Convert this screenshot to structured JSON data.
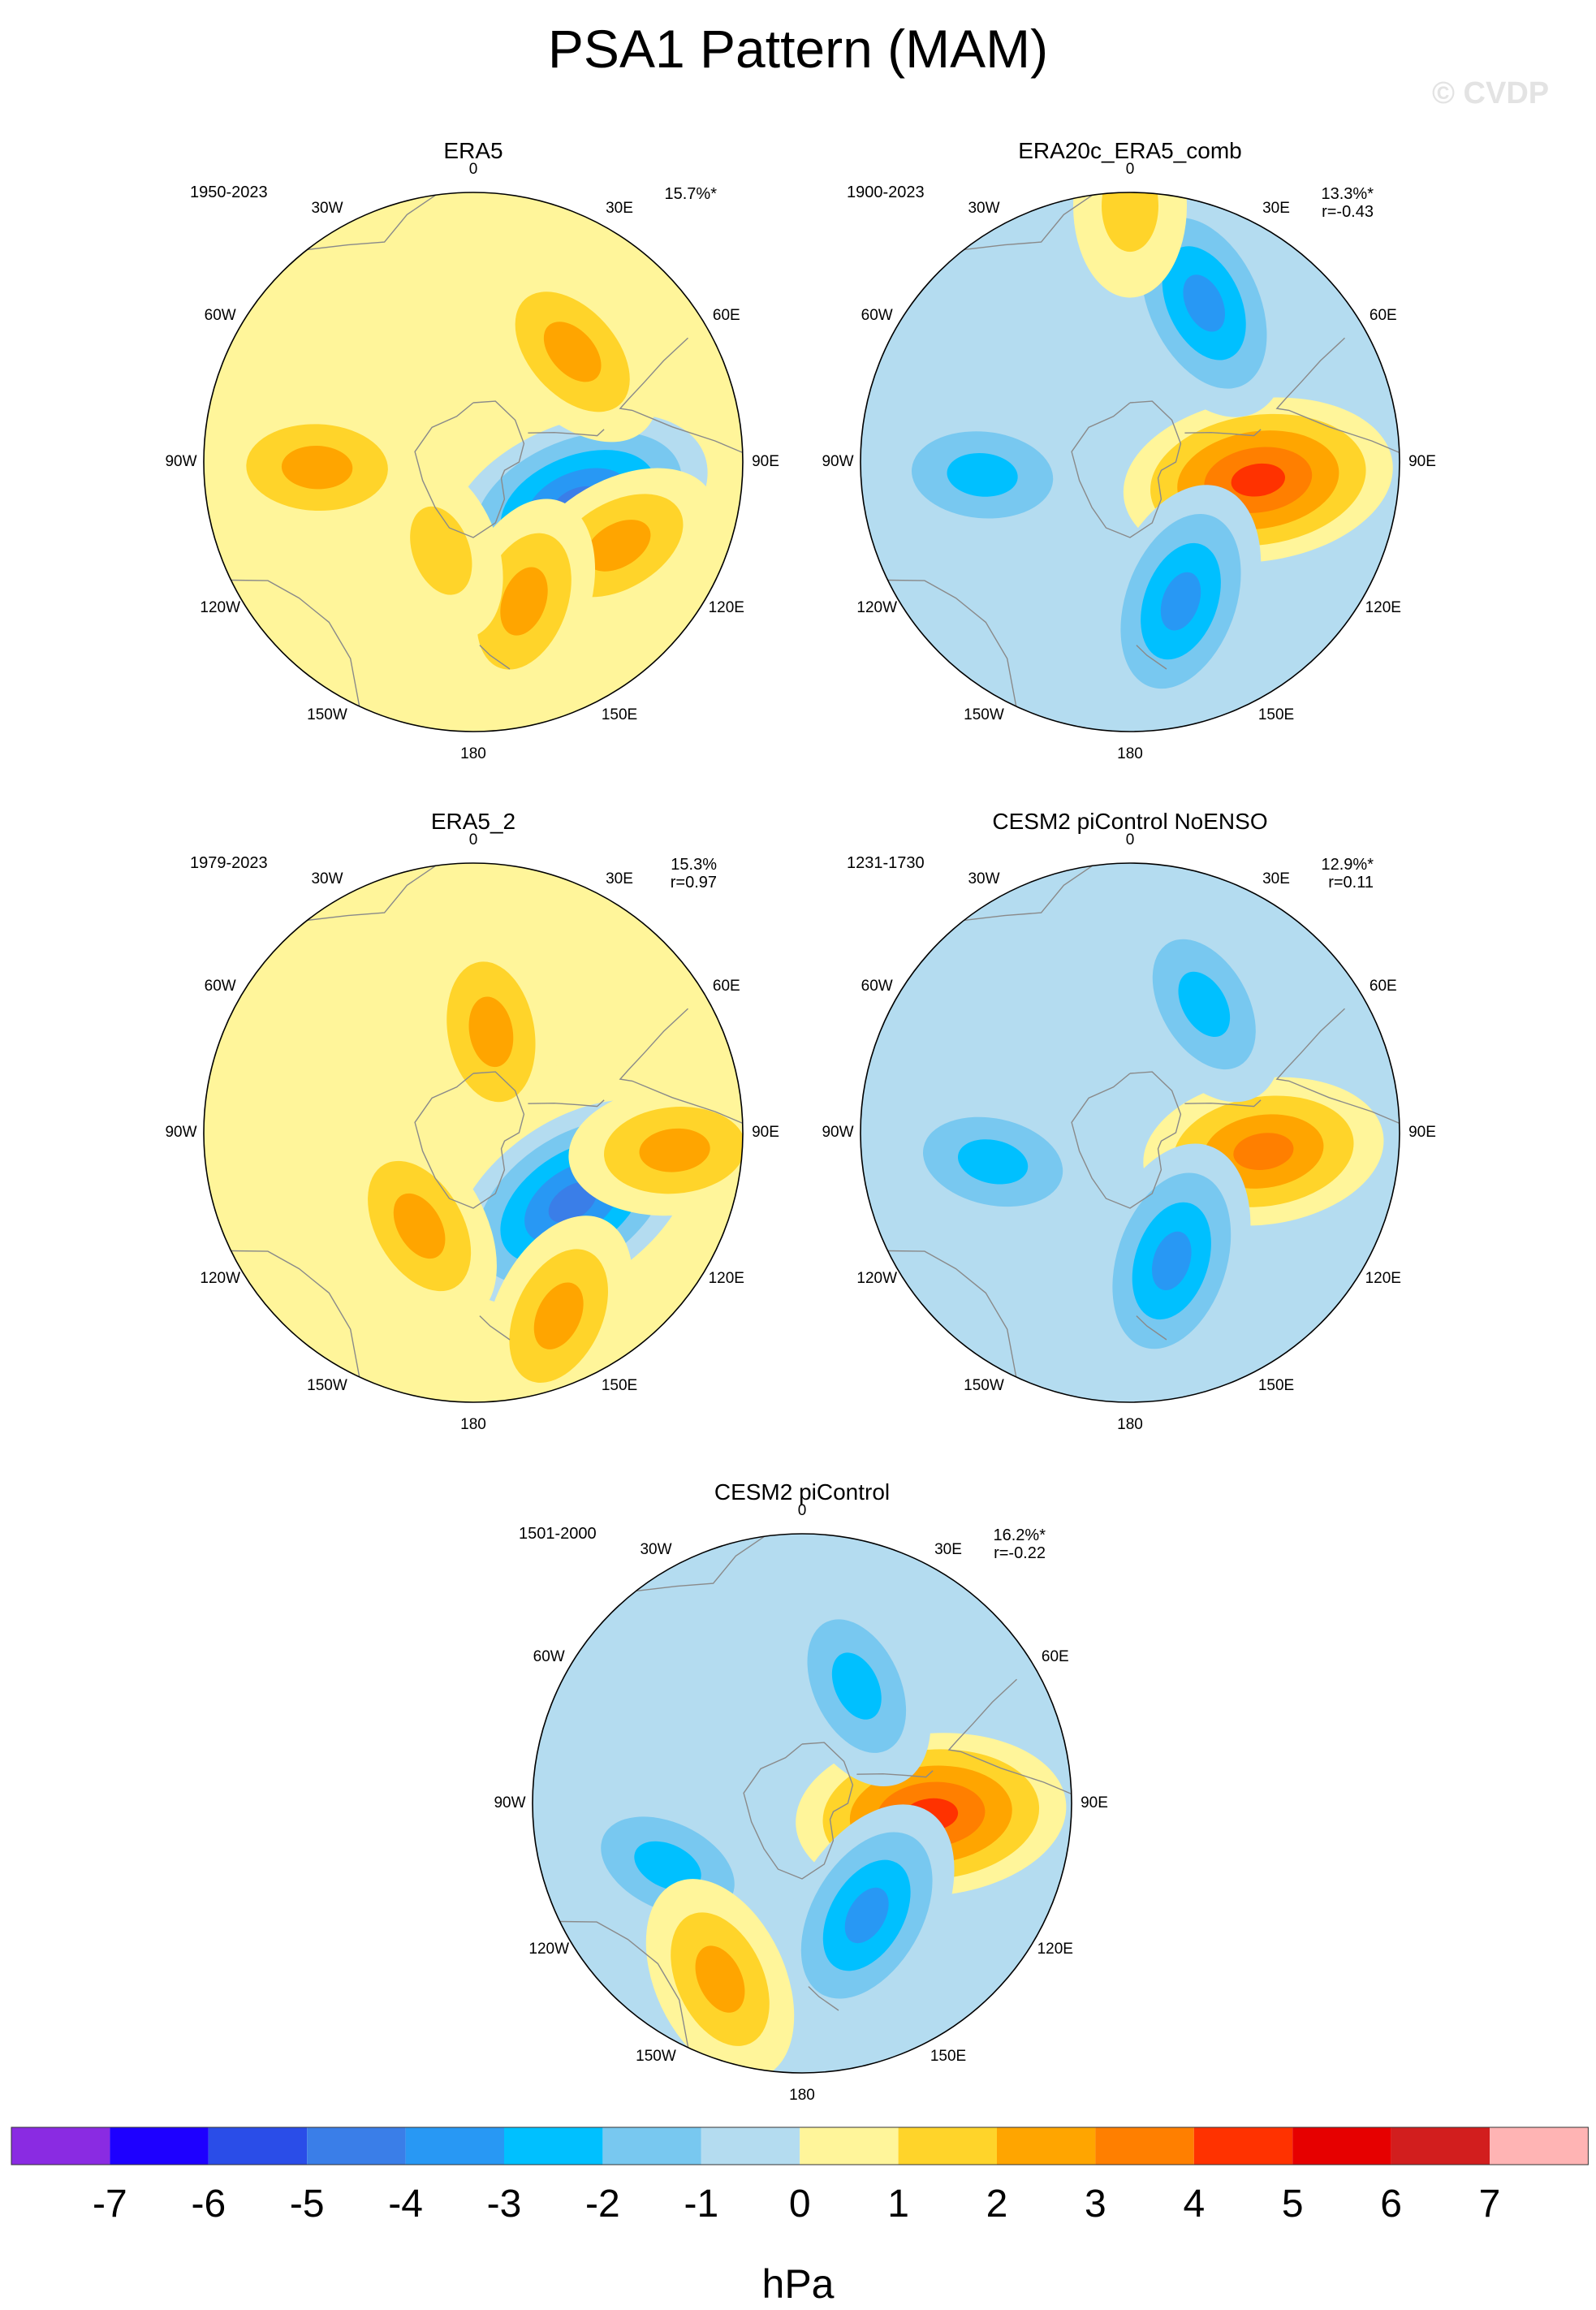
{
  "title": "PSA1 Pattern (MAM)",
  "watermark": "© CVDP",
  "chart_data": {
    "type": "heatmap",
    "projection": "south polar stereographic",
    "variable": "PSA1 sea level pressure pattern",
    "units": "hPa",
    "longitude_labels": [
      "0",
      "30E",
      "60E",
      "90E",
      "120E",
      "150E",
      "180",
      "150W",
      "120W",
      "90W",
      "60W",
      "30W"
    ],
    "panels": [
      {
        "title": "ERA5",
        "period": "1950-2023",
        "pct_variance": "15.7%*",
        "pattern_corr": "",
        "features": [
          {
            "sign": "neg",
            "peak": -4,
            "lon": 112,
            "colat": 0.42,
            "note": "main low west of Antarctic Peninsula"
          },
          {
            "sign": "pos",
            "peak": 2,
            "lon": 42,
            "colat": 0.55
          },
          {
            "sign": "pos",
            "peak": 2,
            "lon": 120,
            "colat": 0.62
          },
          {
            "sign": "pos",
            "peak": 2,
            "lon": 160,
            "colat": 0.55
          },
          {
            "sign": "pos",
            "peak": 2,
            "lon": 268,
            "colat": 0.58
          },
          {
            "sign": "pos",
            "peak": 1,
            "lon": 200,
            "colat": 0.35
          }
        ]
      },
      {
        "title": "ERA20c_ERA5_comb",
        "period": "1900-2023",
        "pct_variance": "13.3%*",
        "pattern_corr": "r=-0.43",
        "features": [
          {
            "sign": "pos",
            "peak": 4,
            "lon": 98,
            "colat": 0.48,
            "note": "high west of Antarctic Peninsula"
          },
          {
            "sign": "neg",
            "peak": -3,
            "lon": 25,
            "colat": 0.65
          },
          {
            "sign": "neg",
            "peak": -2,
            "lon": 265,
            "colat": 0.55
          },
          {
            "sign": "neg",
            "peak": -3,
            "lon": 160,
            "colat": 0.55
          },
          {
            "sign": "pos",
            "peak": 1,
            "lon": 0,
            "colat": 0.95
          }
        ]
      },
      {
        "title": "ERA5_2",
        "period": "1979-2023",
        "pct_variance": "15.3%",
        "pattern_corr": "r=0.97",
        "features": [
          {
            "sign": "neg",
            "peak": -4,
            "lon": 125,
            "colat": 0.45,
            "note": "main low west of Antarctic Peninsula"
          },
          {
            "sign": "pos",
            "peak": 2,
            "lon": 95,
            "colat": 0.75
          },
          {
            "sign": "pos",
            "peak": 2,
            "lon": 155,
            "colat": 0.75
          },
          {
            "sign": "pos",
            "peak": 2,
            "lon": 210,
            "colat": 0.4
          },
          {
            "sign": "pos",
            "peak": 2,
            "lon": 10,
            "colat": 0.38
          }
        ]
      },
      {
        "title": "CESM2 piControl NoENSO",
        "period": "1231-1730",
        "pct_variance": "12.9%*",
        "pattern_corr": "r=0.11",
        "features": [
          {
            "sign": "pos",
            "peak": 3,
            "lon": 98,
            "colat": 0.5,
            "note": "high west of Antarctic Peninsula"
          },
          {
            "sign": "neg",
            "peak": -2,
            "lon": 30,
            "colat": 0.55
          },
          {
            "sign": "neg",
            "peak": -2,
            "lon": 258,
            "colat": 0.52
          },
          {
            "sign": "neg",
            "peak": -3,
            "lon": 162,
            "colat": 0.5
          }
        ]
      },
      {
        "title": "CESM2 piControl",
        "period": "1501-2000",
        "pct_variance": "16.2%*",
        "pattern_corr": "r=-0.22",
        "features": [
          {
            "sign": "pos",
            "peak": 4,
            "lon": 95,
            "colat": 0.48,
            "note": "high west of Antarctic Peninsula"
          },
          {
            "sign": "neg",
            "peak": -2,
            "lon": 25,
            "colat": 0.48
          },
          {
            "sign": "neg",
            "peak": -2,
            "lon": 245,
            "colat": 0.55
          },
          {
            "sign": "neg",
            "peak": -3,
            "lon": 150,
            "colat": 0.48
          },
          {
            "sign": "pos",
            "peak": 2,
            "lon": 205,
            "colat": 0.72
          }
        ]
      }
    ],
    "colorbar": {
      "label": "hPa",
      "tick_labels": [
        "-7",
        "-6",
        "-5",
        "-4",
        "-3",
        "-2",
        "-1",
        "0",
        "1",
        "2",
        "3",
        "4",
        "5",
        "6",
        "7"
      ],
      "colors": [
        "#8a2be2",
        "#1e00ff",
        "#2a4de8",
        "#3a7ee8",
        "#2898f4",
        "#00c0ff",
        "#78c8f0",
        "#b4dcf0",
        "#fff59a",
        "#ffd42a",
        "#ffa500",
        "#ff7f00",
        "#ff3200",
        "#e60000",
        "#d21e1e",
        "#ffb4b4"
      ]
    }
  }
}
